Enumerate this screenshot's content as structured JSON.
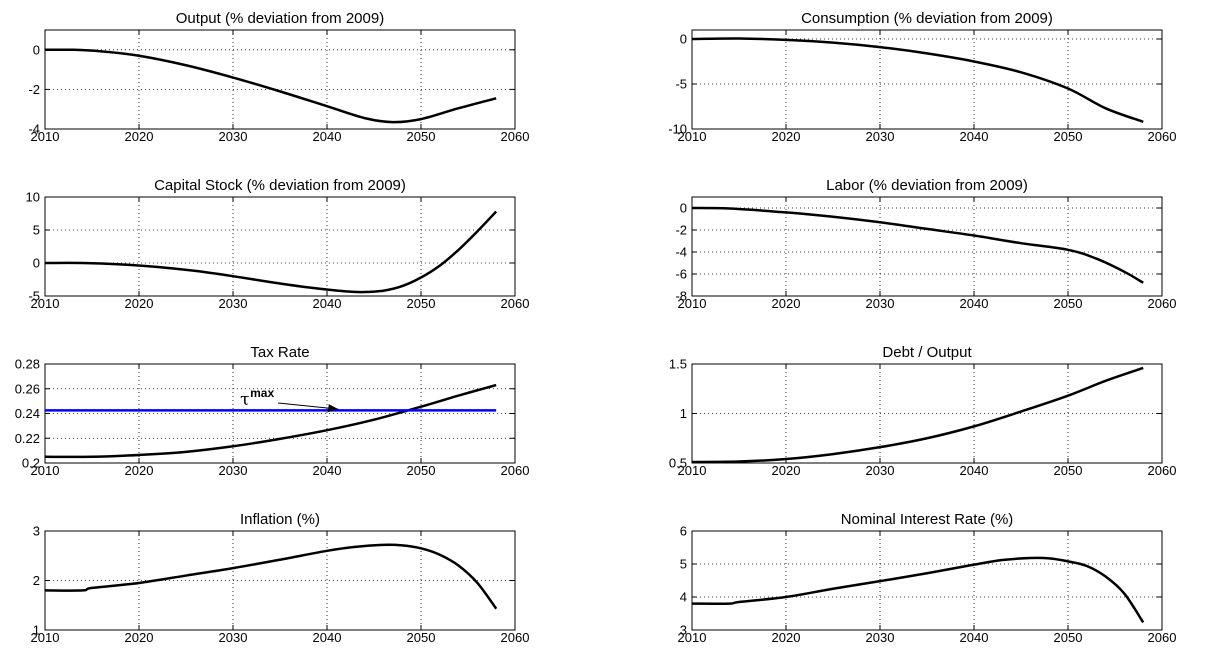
{
  "chart_data": [
    {
      "type": "line",
      "title": "Output (% deviation from 2009)",
      "xlim": [
        2010,
        2060
      ],
      "xticks": [
        2010,
        2020,
        2030,
        2040,
        2050,
        2060
      ],
      "ylim": [
        -4,
        1
      ],
      "yticks": [
        -4,
        -2,
        0
      ],
      "grid": true,
      "series": [
        {
          "color": "#000000",
          "x": [
            2010,
            2013,
            2016,
            2020,
            2025,
            2030,
            2035,
            2040,
            2044,
            2047,
            2050,
            2054,
            2058
          ],
          "y": [
            0,
            0,
            -0.08,
            -0.3,
            -0.78,
            -1.4,
            -2.1,
            -2.85,
            -3.45,
            -3.65,
            -3.5,
            -2.95,
            -2.45
          ]
        }
      ]
    },
    {
      "type": "line",
      "title": "Consumption (% deviation from 2009)",
      "xlim": [
        2010,
        2060
      ],
      "xticks": [
        2010,
        2020,
        2030,
        2040,
        2050,
        2060
      ],
      "ylim": [
        -10,
        1
      ],
      "yticks": [
        -10,
        -5,
        0
      ],
      "grid": true,
      "series": [
        {
          "color": "#000000",
          "x": [
            2010,
            2015,
            2020,
            2025,
            2030,
            2035,
            2040,
            2045,
            2050,
            2054,
            2058
          ],
          "y": [
            0,
            0.05,
            -0.1,
            -0.4,
            -0.9,
            -1.6,
            -2.5,
            -3.7,
            -5.5,
            -7.7,
            -9.2
          ]
        }
      ]
    },
    {
      "type": "line",
      "title": "Capital Stock (% deviation from 2009)",
      "xlim": [
        2010,
        2060
      ],
      "xticks": [
        2010,
        2020,
        2030,
        2040,
        2050,
        2060
      ],
      "ylim": [
        -5,
        10
      ],
      "yticks": [
        -5,
        0,
        5,
        10
      ],
      "grid": true,
      "series": [
        {
          "color": "#000000",
          "x": [
            2010,
            2014,
            2018,
            2022,
            2026,
            2030,
            2034,
            2038,
            2042,
            2044,
            2046,
            2048,
            2050,
            2052,
            2054,
            2056,
            2058
          ],
          "y": [
            0,
            0,
            -0.2,
            -0.6,
            -1.2,
            -2.0,
            -2.9,
            -3.7,
            -4.3,
            -4.4,
            -4.2,
            -3.5,
            -2.2,
            -0.4,
            2.0,
            4.8,
            7.8
          ]
        }
      ]
    },
    {
      "type": "line",
      "title": "Labor (% deviation from 2009)",
      "xlim": [
        2010,
        2060
      ],
      "xticks": [
        2010,
        2020,
        2030,
        2040,
        2050,
        2060
      ],
      "ylim": [
        -8,
        1
      ],
      "yticks": [
        -8,
        -6,
        -4,
        -2,
        0
      ],
      "grid": true,
      "series": [
        {
          "color": "#000000",
          "x": [
            2010,
            2014,
            2020,
            2025,
            2030,
            2035,
            2040,
            2045,
            2050,
            2053,
            2056,
            2058
          ],
          "y": [
            0,
            -0.05,
            -0.4,
            -0.8,
            -1.3,
            -1.9,
            -2.5,
            -3.2,
            -3.8,
            -4.6,
            -5.8,
            -6.8
          ]
        }
      ]
    },
    {
      "type": "line",
      "title": "Tax Rate",
      "xlim": [
        2010,
        2060
      ],
      "xticks": [
        2010,
        2020,
        2030,
        2040,
        2050,
        2060
      ],
      "ylim": [
        0.2,
        0.28
      ],
      "yticks": [
        0.2,
        0.22,
        0.24,
        0.26,
        0.28
      ],
      "grid": true,
      "series": [
        {
          "color": "#000000",
          "x": [
            2010,
            2015,
            2020,
            2025,
            2030,
            2035,
            2040,
            2045,
            2050,
            2054,
            2058
          ],
          "y": [
            0.205,
            0.205,
            0.2065,
            0.209,
            0.2135,
            0.2195,
            0.2265,
            0.235,
            0.2455,
            0.2545,
            0.263
          ]
        },
        {
          "color": "#0000ff",
          "x": [
            2010,
            2058
          ],
          "y": [
            0.2425,
            0.2425
          ]
        }
      ],
      "annotation": {
        "text": "τ",
        "sup": "max",
        "arrow_from": [
          2034.8,
          0.2485
        ],
        "arrow_to": [
          2041.2,
          0.2435
        ]
      }
    },
    {
      "type": "line",
      "title": "Debt / Output",
      "xlim": [
        2010,
        2060
      ],
      "xticks": [
        2010,
        2020,
        2030,
        2040,
        2050,
        2060
      ],
      "ylim": [
        0.5,
        1.5
      ],
      "yticks": [
        0.5,
        1,
        1.5
      ],
      "grid": true,
      "series": [
        {
          "color": "#000000",
          "x": [
            2010,
            2015,
            2020,
            2025,
            2030,
            2035,
            2040,
            2045,
            2050,
            2054,
            2058
          ],
          "y": [
            0.51,
            0.515,
            0.54,
            0.59,
            0.66,
            0.75,
            0.87,
            1.02,
            1.18,
            1.33,
            1.46
          ]
        }
      ]
    },
    {
      "type": "line",
      "title": "Inflation (%)",
      "xlim": [
        2010,
        2060
      ],
      "xticks": [
        2010,
        2020,
        2030,
        2040,
        2050,
        2060
      ],
      "ylim": [
        1,
        3
      ],
      "yticks": [
        1,
        2,
        3
      ],
      "grid": true,
      "series": [
        {
          "color": "#000000",
          "x": [
            2010,
            2014,
            2015,
            2020,
            2025,
            2030,
            2035,
            2040,
            2043,
            2046,
            2048,
            2050,
            2052,
            2054,
            2056,
            2058
          ],
          "y": [
            1.8,
            1.8,
            1.85,
            1.95,
            2.1,
            2.25,
            2.42,
            2.6,
            2.68,
            2.72,
            2.71,
            2.65,
            2.52,
            2.3,
            1.95,
            1.43
          ]
        }
      ]
    },
    {
      "type": "line",
      "title": "Nominal Interest Rate (%)",
      "xlim": [
        2010,
        2060
      ],
      "xticks": [
        2010,
        2020,
        2030,
        2040,
        2050,
        2060
      ],
      "ylim": [
        3,
        6
      ],
      "yticks": [
        3,
        4,
        5,
        6
      ],
      "grid": true,
      "series": [
        {
          "color": "#000000",
          "x": [
            2010,
            2014,
            2015,
            2020,
            2025,
            2030,
            2035,
            2040,
            2043,
            2046,
            2048,
            2050,
            2052,
            2054,
            2056,
            2058
          ],
          "y": [
            3.8,
            3.8,
            3.85,
            4.0,
            4.25,
            4.48,
            4.72,
            4.98,
            5.12,
            5.18,
            5.17,
            5.08,
            4.94,
            4.62,
            4.1,
            3.23
          ]
        }
      ]
    }
  ]
}
